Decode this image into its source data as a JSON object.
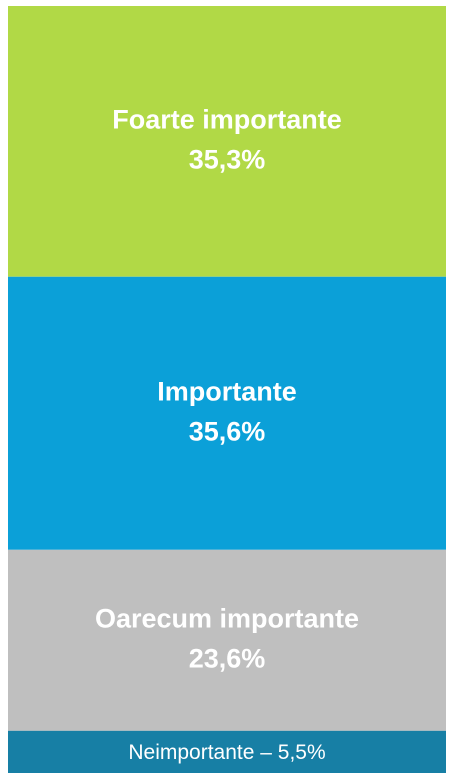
{
  "chart_data": {
    "type": "stacked-column",
    "categories": [
      "Foarte importante",
      "Importante",
      "Oarecum importante",
      "Neimportante"
    ],
    "values": [
      35.3,
      35.6,
      23.6,
      5.5
    ],
    "value_labels": [
      "35,3%",
      "35,6%",
      "23,6%",
      "5,5%"
    ],
    "label_separator": " – ",
    "colors": [
      "#b1d946",
      "#0ba0d8",
      "#bfbfbf",
      "#177fa5"
    ],
    "ylim": [
      0,
      100
    ]
  }
}
